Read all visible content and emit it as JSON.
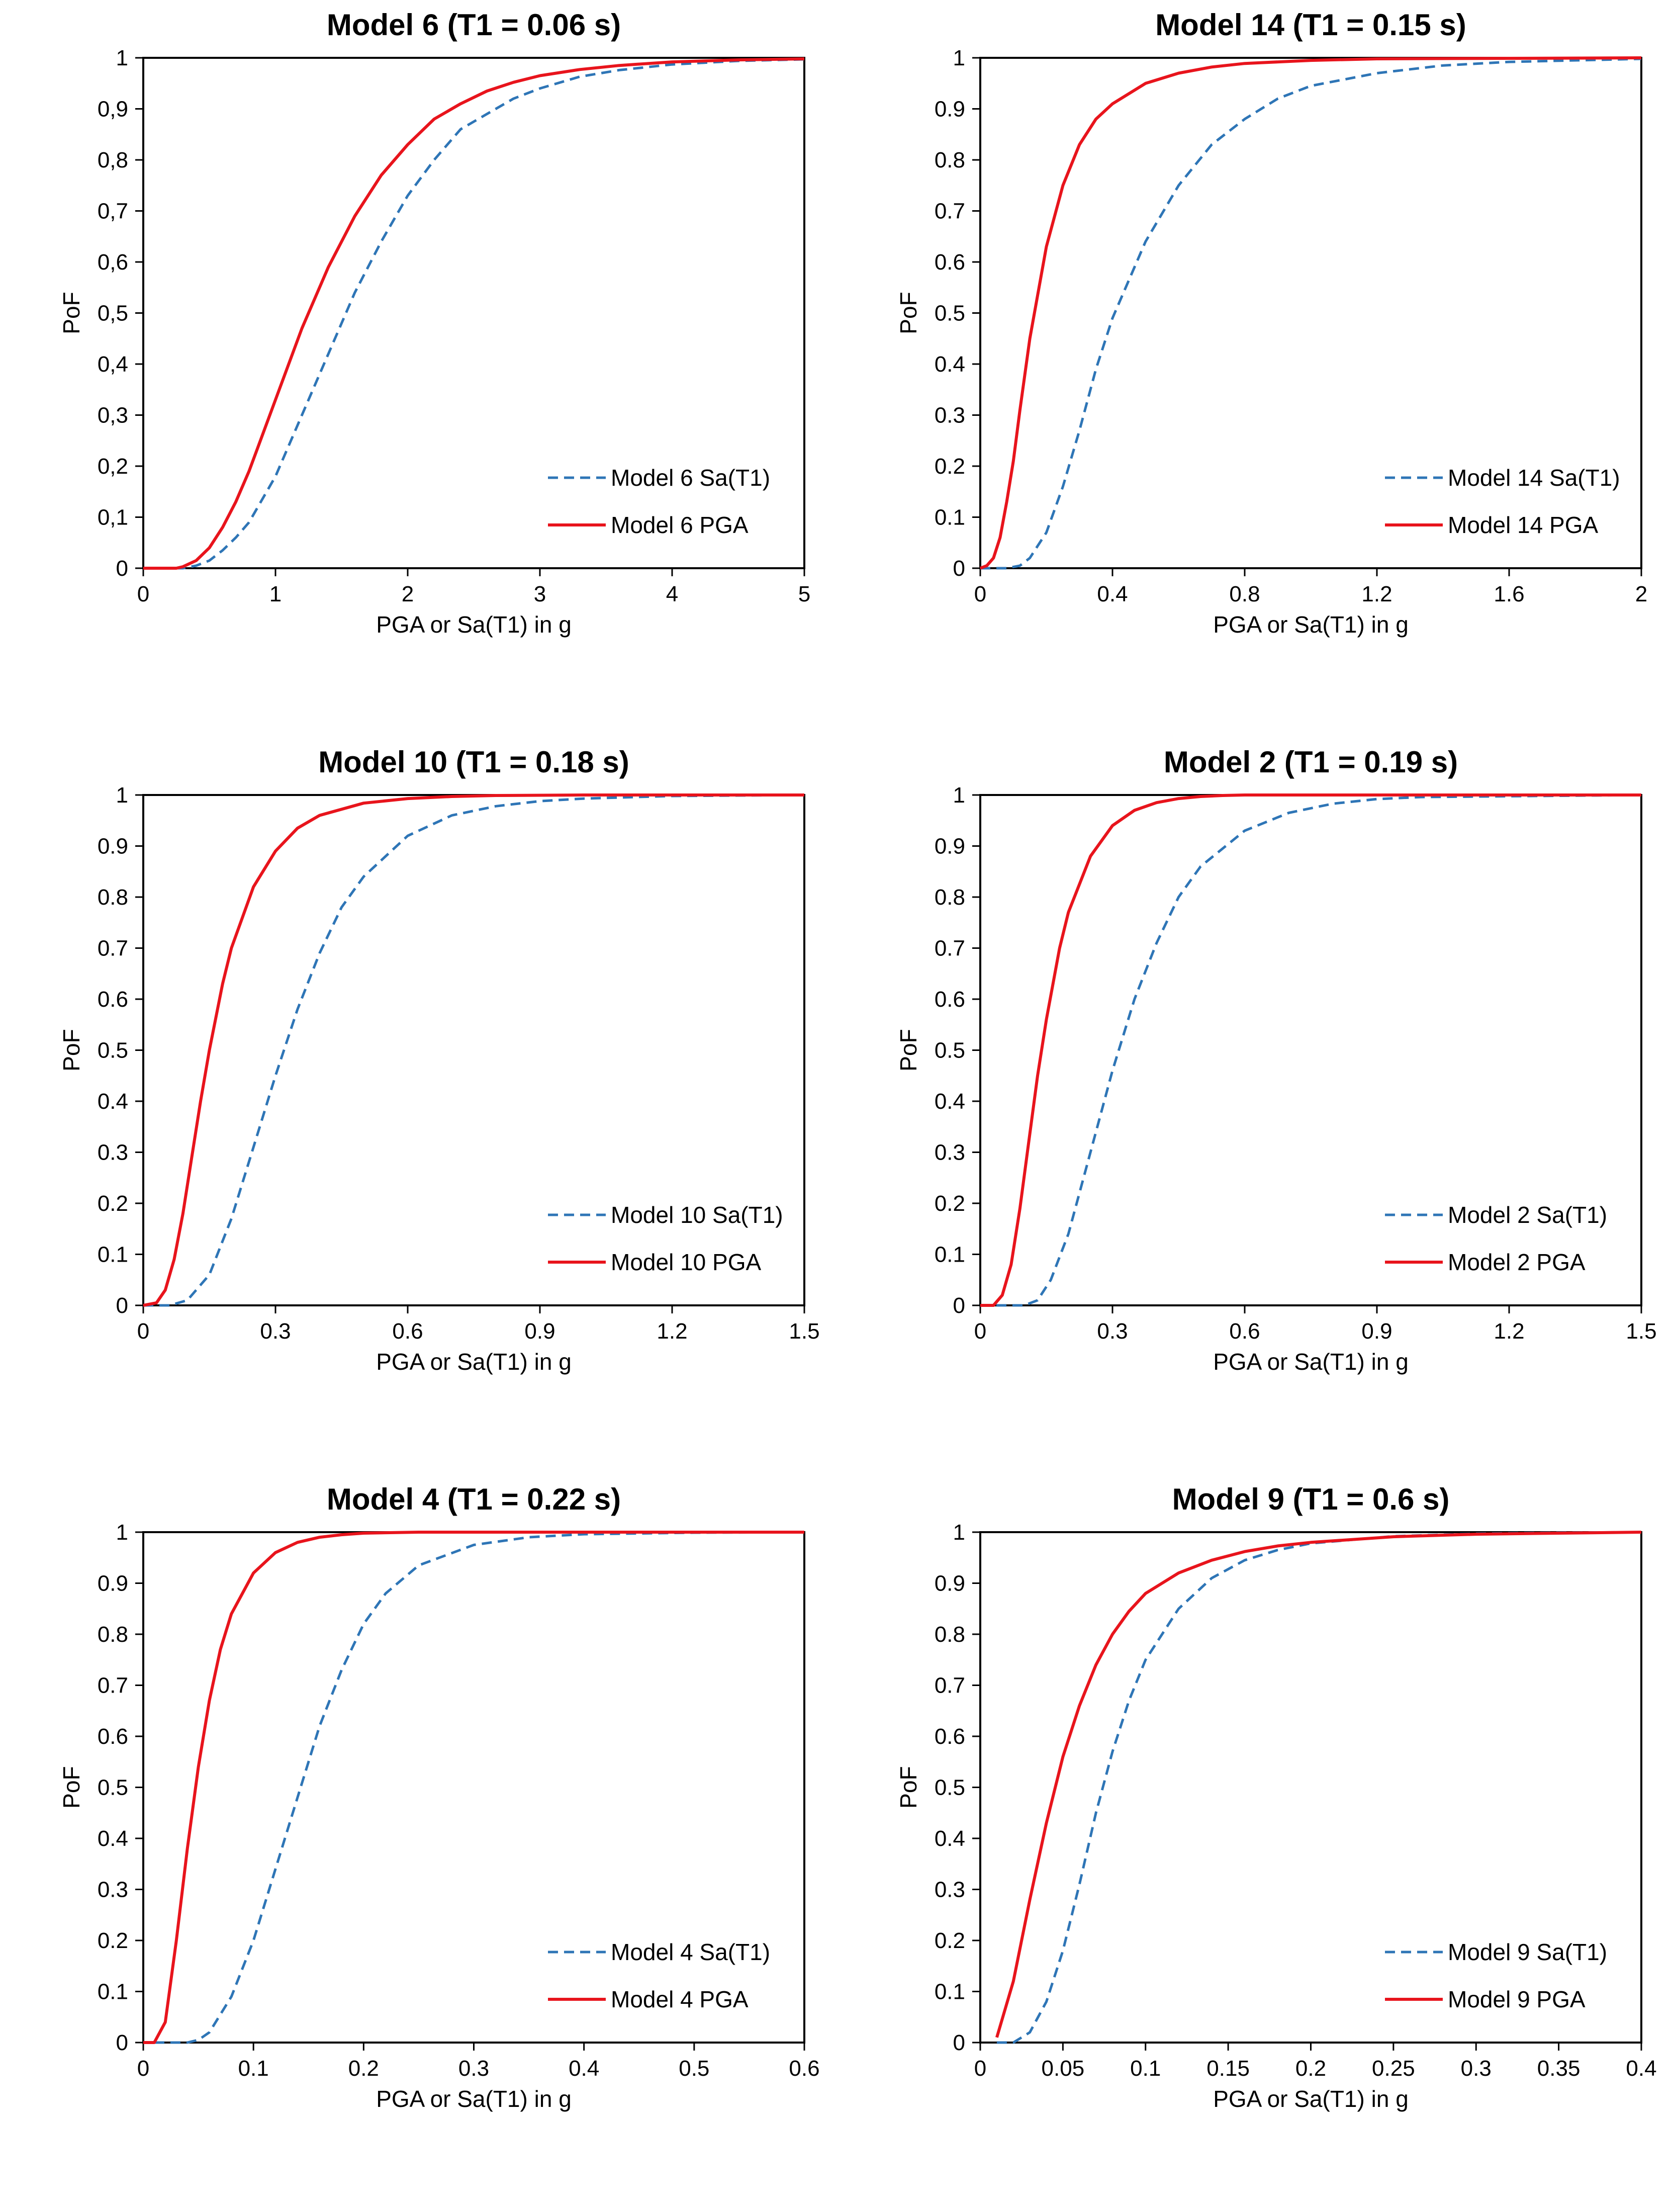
{
  "colors": {
    "sa": "#2e75b6",
    "pga": "#e8141c"
  },
  "chart_data": [
    {
      "type": "line",
      "title": "Model 6 (T1 = 0.06 s)",
      "xlabel": "PGA or Sa(T1) in g",
      "ylabel": "PoF",
      "xlim": [
        0,
        5
      ],
      "ylim": [
        0,
        1
      ],
      "xticks": [
        0,
        1,
        2,
        3,
        4,
        5
      ],
      "xtick_labels": [
        "0",
        "1",
        "2",
        "3",
        "4",
        "5"
      ],
      "yticks": [
        0,
        0.1,
        0.2,
        0.3,
        0.4,
        0.5,
        0.6,
        0.7,
        0.8,
        0.9,
        1
      ],
      "ytick_labels": [
        "0",
        "0,1",
        "0,2",
        "0,3",
        "0,4",
        "0,5",
        "0,6",
        "0,7",
        "0,8",
        "0,9",
        "1"
      ],
      "legend_position": "bottom-right",
      "series": [
        {
          "name": "Model 6 Sa(T1)",
          "style": "dashed",
          "color_key": "sa",
          "x": [
            0,
            0.3,
            0.4,
            0.5,
            0.6,
            0.7,
            0.8,
            1.0,
            1.2,
            1.4,
            1.6,
            1.8,
            2.0,
            2.2,
            2.4,
            2.6,
            2.8,
            3.0,
            3.3,
            3.6,
            4.0,
            4.5,
            5.0
          ],
          "y": [
            0,
            0,
            0.005,
            0.015,
            0.035,
            0.06,
            0.09,
            0.18,
            0.3,
            0.42,
            0.54,
            0.64,
            0.73,
            0.8,
            0.86,
            0.89,
            0.92,
            0.94,
            0.963,
            0.976,
            0.987,
            0.994,
            0.997
          ]
        },
        {
          "name": "Model 6 PGA",
          "style": "solid",
          "color_key": "pga",
          "x": [
            0,
            0.25,
            0.3,
            0.4,
            0.5,
            0.6,
            0.7,
            0.8,
            0.9,
            1.0,
            1.2,
            1.4,
            1.6,
            1.8,
            2.0,
            2.2,
            2.4,
            2.6,
            2.8,
            3.0,
            3.3,
            3.6,
            4.0,
            4.5,
            5.0
          ],
          "y": [
            0,
            0,
            0.003,
            0.015,
            0.04,
            0.08,
            0.13,
            0.19,
            0.26,
            0.33,
            0.47,
            0.59,
            0.69,
            0.77,
            0.83,
            0.88,
            0.91,
            0.935,
            0.952,
            0.965,
            0.977,
            0.985,
            0.992,
            0.996,
            0.998
          ]
        }
      ]
    },
    {
      "type": "line",
      "title": "Model 14 (T1 = 0.15 s)",
      "xlabel": "PGA or Sa(T1) in g",
      "ylabel": "PoF",
      "xlim": [
        0,
        2
      ],
      "ylim": [
        0,
        1
      ],
      "xticks": [
        0,
        0.4,
        0.8,
        1.2,
        1.6,
        2
      ],
      "xtick_labels": [
        "0",
        "0.4",
        "0.8",
        "1.2",
        "1.6",
        "2"
      ],
      "yticks": [
        0,
        0.1,
        0.2,
        0.3,
        0.4,
        0.5,
        0.6,
        0.7,
        0.8,
        0.9,
        1
      ],
      "ytick_labels": [
        "0",
        "0.1",
        "0.2",
        "0.3",
        "0.4",
        "0.5",
        "0.6",
        "0.7",
        "0.8",
        "0.9",
        "1"
      ],
      "legend_position": "bottom-right",
      "series": [
        {
          "name": "Model 14 Sa(T1)",
          "style": "dashed",
          "color_key": "sa",
          "x": [
            0,
            0.08,
            0.12,
            0.15,
            0.2,
            0.25,
            0.3,
            0.35,
            0.4,
            0.5,
            0.6,
            0.7,
            0.8,
            0.9,
            1.0,
            1.2,
            1.4,
            1.6,
            2.0
          ],
          "y": [
            0,
            0,
            0.005,
            0.02,
            0.07,
            0.16,
            0.27,
            0.39,
            0.49,
            0.64,
            0.75,
            0.83,
            0.88,
            0.92,
            0.945,
            0.97,
            0.985,
            0.992,
            0.998
          ]
        },
        {
          "name": "Model 14 PGA",
          "style": "solid",
          "color_key": "pga",
          "x": [
            0,
            0.02,
            0.04,
            0.06,
            0.08,
            0.1,
            0.12,
            0.15,
            0.2,
            0.25,
            0.3,
            0.35,
            0.4,
            0.5,
            0.6,
            0.7,
            0.8,
            1.0,
            1.2,
            1.6,
            2.0
          ],
          "y": [
            0,
            0.005,
            0.02,
            0.06,
            0.13,
            0.21,
            0.31,
            0.45,
            0.63,
            0.75,
            0.83,
            0.88,
            0.91,
            0.95,
            0.97,
            0.982,
            0.989,
            0.995,
            0.998,
            0.999,
            1.0
          ]
        }
      ]
    },
    {
      "type": "line",
      "title": "Model 10 (T1 = 0.18 s)",
      "xlabel": "PGA or Sa(T1) in g",
      "ylabel": "PoF",
      "xlim": [
        0,
        1.5
      ],
      "ylim": [
        0,
        1
      ],
      "xticks": [
        0,
        0.3,
        0.6,
        0.9,
        1.2,
        1.5
      ],
      "xtick_labels": [
        "0",
        "0.3",
        "0.6",
        "0.9",
        "1.2",
        "1.5"
      ],
      "yticks": [
        0,
        0.1,
        0.2,
        0.3,
        0.4,
        0.5,
        0.6,
        0.7,
        0.8,
        0.9,
        1
      ],
      "ytick_labels": [
        "0",
        "0.1",
        "0.2",
        "0.3",
        "0.4",
        "0.5",
        "0.6",
        "0.7",
        "0.8",
        "0.9",
        "1"
      ],
      "legend_position": "bottom-right",
      "series": [
        {
          "name": "Model 10 Sa(T1)",
          "style": "dashed",
          "color_key": "sa",
          "x": [
            0,
            0.06,
            0.1,
            0.15,
            0.2,
            0.25,
            0.3,
            0.35,
            0.4,
            0.45,
            0.5,
            0.6,
            0.7,
            0.8,
            0.9,
            1.0,
            1.2,
            1.5
          ],
          "y": [
            0,
            0,
            0.01,
            0.06,
            0.17,
            0.31,
            0.45,
            0.58,
            0.69,
            0.78,
            0.84,
            0.92,
            0.96,
            0.978,
            0.988,
            0.993,
            0.998,
            1.0
          ]
        },
        {
          "name": "Model 10 PGA",
          "style": "solid",
          "color_key": "pga",
          "x": [
            0,
            0.03,
            0.05,
            0.07,
            0.09,
            0.11,
            0.13,
            0.15,
            0.18,
            0.2,
            0.25,
            0.3,
            0.35,
            0.4,
            0.5,
            0.6,
            0.7,
            0.8,
            1.0,
            1.5
          ],
          "y": [
            0,
            0.005,
            0.03,
            0.09,
            0.18,
            0.29,
            0.4,
            0.5,
            0.63,
            0.7,
            0.82,
            0.89,
            0.935,
            0.96,
            0.984,
            0.993,
            0.997,
            0.999,
            1.0,
            1.0
          ]
        }
      ]
    },
    {
      "type": "line",
      "title": "Model 2 (T1 = 0.19 s)",
      "xlabel": "PGA or Sa(T1) in g",
      "ylabel": "PoF",
      "xlim": [
        0,
        1.5
      ],
      "ylim": [
        0,
        1
      ],
      "xticks": [
        0,
        0.3,
        0.6,
        0.9,
        1.2,
        1.5
      ],
      "xtick_labels": [
        "0",
        "0.3",
        "0.6",
        "0.9",
        "1.2",
        "1.5"
      ],
      "yticks": [
        0,
        0.1,
        0.2,
        0.3,
        0.4,
        0.5,
        0.6,
        0.7,
        0.8,
        0.9,
        1
      ],
      "ytick_labels": [
        "0",
        "0.1",
        "0.2",
        "0.3",
        "0.4",
        "0.5",
        "0.6",
        "0.7",
        "0.8",
        "0.9",
        "1"
      ],
      "legend_position": "bottom-right",
      "series": [
        {
          "name": "Model 2 Sa(T1)",
          "style": "dashed",
          "color_key": "sa",
          "x": [
            0,
            0.1,
            0.13,
            0.16,
            0.2,
            0.25,
            0.3,
            0.35,
            0.4,
            0.45,
            0.5,
            0.6,
            0.7,
            0.8,
            0.9,
            1.0,
            1.5
          ],
          "y": [
            0,
            0,
            0.01,
            0.05,
            0.14,
            0.3,
            0.46,
            0.6,
            0.71,
            0.8,
            0.86,
            0.93,
            0.965,
            0.983,
            0.992,
            0.996,
            1.0
          ]
        },
        {
          "name": "Model 2 PGA",
          "style": "solid",
          "color_key": "pga",
          "x": [
            0,
            0.03,
            0.05,
            0.07,
            0.09,
            0.11,
            0.13,
            0.15,
            0.18,
            0.2,
            0.25,
            0.3,
            0.35,
            0.4,
            0.45,
            0.5,
            0.55,
            0.6,
            1.5
          ],
          "y": [
            0,
            0,
            0.02,
            0.08,
            0.19,
            0.32,
            0.45,
            0.56,
            0.7,
            0.77,
            0.88,
            0.94,
            0.97,
            0.985,
            0.993,
            0.997,
            0.999,
            1.0,
            1.0
          ]
        }
      ]
    },
    {
      "type": "line",
      "title": "Model 4 (T1 = 0.22 s)",
      "xlabel": "PGA or Sa(T1) in g",
      "ylabel": "PoF",
      "xlim": [
        0,
        0.6
      ],
      "ylim": [
        0,
        1
      ],
      "xticks": [
        0,
        0.1,
        0.2,
        0.3,
        0.4,
        0.5,
        0.6
      ],
      "xtick_labels": [
        "0",
        "0.1",
        "0.2",
        "0.3",
        "0.4",
        "0.5",
        "0.6"
      ],
      "yticks": [
        0,
        0.1,
        0.2,
        0.3,
        0.4,
        0.5,
        0.6,
        0.7,
        0.8,
        0.9,
        1
      ],
      "ytick_labels": [
        "0",
        "0.1",
        "0.2",
        "0.3",
        "0.4",
        "0.5",
        "0.6",
        "0.7",
        "0.8",
        "0.9",
        "1"
      ],
      "legend_position": "bottom-right",
      "series": [
        {
          "name": "Model 4 Sa(T1)",
          "style": "dashed",
          "color_key": "sa",
          "x": [
            0.01,
            0.04,
            0.05,
            0.06,
            0.08,
            0.1,
            0.12,
            0.14,
            0.16,
            0.18,
            0.2,
            0.22,
            0.25,
            0.3,
            0.35,
            0.4,
            0.5,
            0.6
          ],
          "y": [
            0,
            0,
            0.005,
            0.02,
            0.09,
            0.2,
            0.34,
            0.48,
            0.62,
            0.73,
            0.82,
            0.88,
            0.935,
            0.975,
            0.99,
            0.996,
            0.999,
            1.0
          ]
        },
        {
          "name": "Model 4 PGA",
          "style": "solid",
          "color_key": "pga",
          "x": [
            0,
            0.01,
            0.02,
            0.03,
            0.04,
            0.05,
            0.06,
            0.07,
            0.08,
            0.1,
            0.12,
            0.14,
            0.16,
            0.18,
            0.2,
            0.25,
            0.3,
            0.6
          ],
          "y": [
            0,
            0,
            0.04,
            0.2,
            0.38,
            0.54,
            0.67,
            0.77,
            0.84,
            0.92,
            0.96,
            0.98,
            0.99,
            0.995,
            0.998,
            1.0,
            1.0,
            1.0
          ]
        }
      ]
    },
    {
      "type": "line",
      "title": "Model 9 (T1 = 0.6 s)",
      "xlabel": "PGA or Sa(T1) in g",
      "ylabel": "PoF",
      "xlim": [
        0,
        0.4
      ],
      "ylim": [
        0,
        1
      ],
      "xticks": [
        0,
        0.05,
        0.1,
        0.15,
        0.2,
        0.25,
        0.3,
        0.35,
        0.4
      ],
      "xtick_labels": [
        "0",
        "0.05",
        "0.1",
        "0.15",
        "0.2",
        "0.25",
        "0.3",
        "0.35",
        "0.4"
      ],
      "yticks": [
        0,
        0.1,
        0.2,
        0.3,
        0.4,
        0.5,
        0.6,
        0.7,
        0.8,
        0.9,
        1
      ],
      "ytick_labels": [
        "0",
        "0.1",
        "0.2",
        "0.3",
        "0.4",
        "0.5",
        "0.6",
        "0.7",
        "0.8",
        "0.9",
        "1"
      ],
      "legend_position": "bottom-right",
      "series": [
        {
          "name": "Model 9 Sa(T1)",
          "style": "dashed",
          "color_key": "sa",
          "x": [
            0.01,
            0.02,
            0.03,
            0.04,
            0.05,
            0.06,
            0.07,
            0.08,
            0.09,
            0.1,
            0.12,
            0.14,
            0.16,
            0.18,
            0.2,
            0.25,
            0.3,
            0.35,
            0.4
          ],
          "y": [
            0,
            0,
            0.02,
            0.08,
            0.18,
            0.31,
            0.45,
            0.57,
            0.67,
            0.75,
            0.85,
            0.91,
            0.945,
            0.965,
            0.978,
            0.992,
            0.997,
            0.999,
            1.0
          ]
        },
        {
          "name": "Model 9 PGA",
          "style": "solid",
          "color_key": "pga",
          "x": [
            0.01,
            0.02,
            0.03,
            0.04,
            0.05,
            0.06,
            0.07,
            0.08,
            0.09,
            0.1,
            0.12,
            0.14,
            0.16,
            0.18,
            0.2,
            0.25,
            0.3,
            0.35,
            0.4
          ],
          "y": [
            0.01,
            0.12,
            0.28,
            0.43,
            0.56,
            0.66,
            0.74,
            0.8,
            0.845,
            0.88,
            0.92,
            0.945,
            0.962,
            0.973,
            0.98,
            0.991,
            0.996,
            0.998,
            1.0
          ]
        }
      ]
    }
  ]
}
